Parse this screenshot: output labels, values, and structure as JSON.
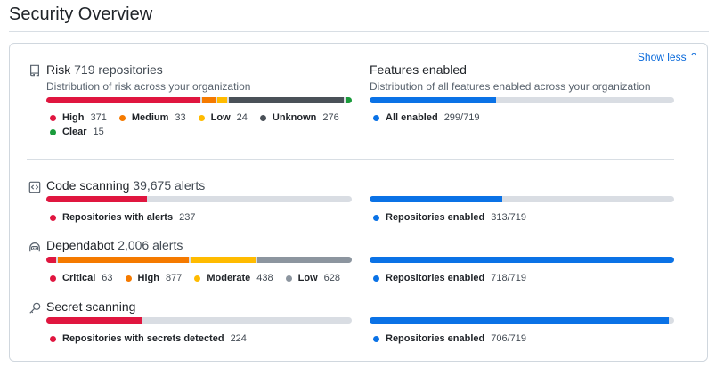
{
  "page": {
    "title": "Security Overview",
    "show_less": "Show less"
  },
  "colors": {
    "red": "#e0163f",
    "orange": "#f57a00",
    "yellow": "#ffbb00",
    "dark": "#4a5158",
    "green": "#1a9b3b",
    "gray": "#8c959f",
    "blue": "#0a72e6",
    "track": "#d9dde3"
  },
  "risk": {
    "label": "Risk",
    "count": "719 repositories",
    "description": "Distribution of risk across your organization",
    "icon": "repo-icon",
    "segments": [
      {
        "label": "High",
        "value": 371,
        "color": "red"
      },
      {
        "label": "Medium",
        "value": 33,
        "color": "orange"
      },
      {
        "label": "Low",
        "value": 24,
        "color": "yellow"
      },
      {
        "label": "Unknown",
        "value": 276,
        "color": "dark"
      },
      {
        "label": "Clear",
        "value": 15,
        "color": "green"
      }
    ]
  },
  "features": {
    "label": "Features enabled",
    "description": "Distribution of all features enabled across your organization",
    "legend": "All enabled",
    "value": "299/719",
    "fraction": 0.4159
  },
  "code_scanning": {
    "label": "Code scanning",
    "count": "39,675 alerts",
    "icon": "code-square-icon",
    "legend": "Repositories with alerts",
    "value": "237",
    "fraction": 0.3296,
    "enabled": {
      "legend": "Repositories enabled",
      "value": "313/719",
      "fraction": 0.4353
    }
  },
  "dependabot": {
    "label": "Dependabot",
    "count": "2,006 alerts",
    "icon": "dependabot-icon",
    "segments": [
      {
        "label": "Critical",
        "value": 63,
        "color": "red"
      },
      {
        "label": "High",
        "value": 877,
        "color": "orange"
      },
      {
        "label": "Moderate",
        "value": 438,
        "color": "yellow"
      },
      {
        "label": "Low",
        "value": 628,
        "color": "gray"
      }
    ],
    "enabled": {
      "legend": "Repositories enabled",
      "value": "718/719",
      "fraction": 0.9986
    }
  },
  "secret_scanning": {
    "label": "Secret scanning",
    "icon": "key-icon",
    "legend": "Repositories with secrets detected",
    "value": "224",
    "fraction": 0.3115,
    "enabled": {
      "legend": "Repositories enabled",
      "value": "706/719",
      "fraction": 0.9819
    }
  }
}
